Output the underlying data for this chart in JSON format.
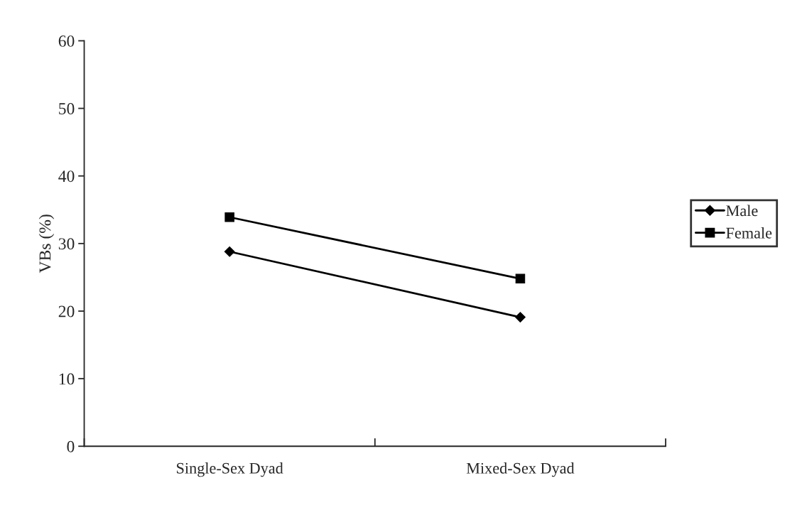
{
  "chart_data": {
    "type": "line",
    "ylabel": "VBs (%)",
    "categories": [
      "Single-Sex Dyad",
      "Mixed-Sex Dyad"
    ],
    "series": [
      {
        "name": "Male",
        "color": "#000000",
        "values": [
          28.8,
          19.1
        ],
        "marker": "diamond"
      },
      {
        "name": "Female",
        "color": "#000000",
        "values": [
          33.9,
          24.8
        ],
        "marker": "square"
      }
    ],
    "ylim": [
      0,
      60
    ],
    "yticks": [
      0,
      10,
      20,
      30,
      40,
      50,
      60
    ],
    "grid": false,
    "legend": "right",
    "line_style": "solid"
  }
}
